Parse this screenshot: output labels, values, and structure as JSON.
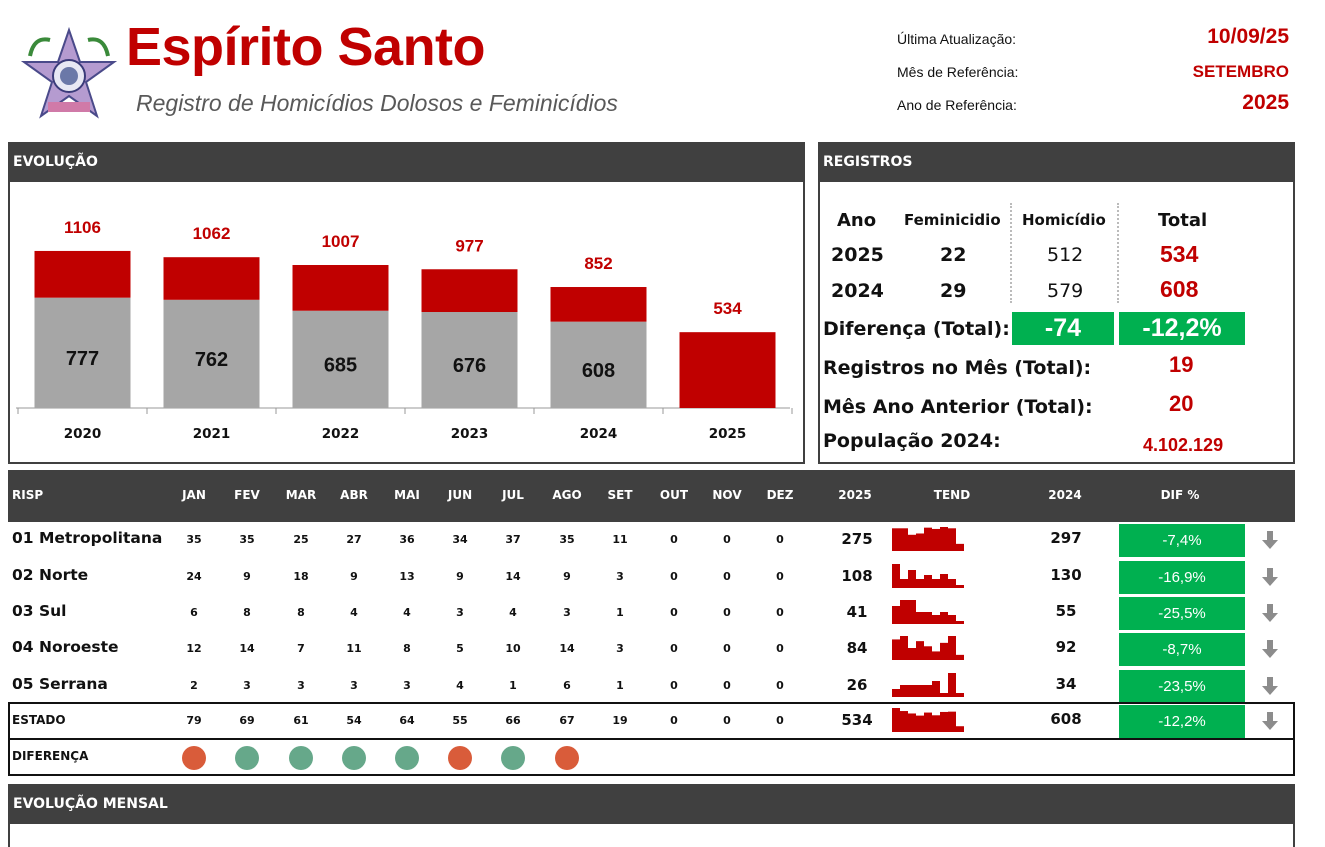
{
  "header": {
    "title": "Espírito Santo",
    "subtitle": "Registro de Homicídios Dolosos e Feminicídios",
    "meta": [
      {
        "label": "Última Atualização:",
        "value": "10/09/25"
      },
      {
        "label": "Mês de Referência:",
        "value": "SETEMBRO"
      },
      {
        "label": "Ano de Referência:",
        "value": "2025"
      }
    ]
  },
  "sections": {
    "evolucao": "EVOLUÇÃO",
    "registros": "REGISTROS",
    "evolucao_mensal": "EVOLUÇÃO MENSAL"
  },
  "chart_data": {
    "type": "bar",
    "stacked": true,
    "categories": [
      "2020",
      "2021",
      "2022",
      "2023",
      "2024",
      "2025"
    ],
    "totals": [
      1106,
      1062,
      1007,
      977,
      852,
      534
    ],
    "series": [
      {
        "name": "",
        "values": [
          777,
          762,
          685,
          676,
          608,
          null
        ],
        "color": "#a6a6a6"
      },
      {
        "name": "",
        "values": [
          329,
          300,
          322,
          301,
          244,
          534
        ],
        "color": "#c00000"
      }
    ],
    "legend": "none",
    "grid": false
  },
  "registros": {
    "headers": {
      "ano": "Ano",
      "fem": "Feminicidio",
      "hom": "Homicídio",
      "total": "Total"
    },
    "rows": [
      {
        "ano": "2025",
        "fem": "22",
        "hom": "512",
        "total": "534"
      },
      {
        "ano": "2024",
        "fem": "29",
        "hom": "579",
        "total": "608"
      }
    ],
    "diferenca_label": "Diferença (Total):",
    "diferenca_abs": "-74",
    "diferenca_pct": "-12,2%",
    "mes_label": "Registros no Mês (Total):",
    "mes_value": "19",
    "mes_anterior_label": "Mês Ano Anterior (Total):",
    "mes_anterior_value": "20",
    "pop_label": "População 2024:",
    "pop_value": "4.102.129"
  },
  "risp": {
    "headers": {
      "risp": "RISP",
      "months": [
        "JAN",
        "FEV",
        "MAR",
        "ABR",
        "MAI",
        "JUN",
        "JUL",
        "AGO",
        "SET",
        "OUT",
        "NOV",
        "DEZ"
      ],
      "y2025": "2025",
      "tend": "TEND",
      "y2024": "2024",
      "dif": "DIF %"
    },
    "rows": [
      {
        "name": "01 Metropolitana",
        "months": [
          "35",
          "35",
          "25",
          "27",
          "36",
          "34",
          "37",
          "35",
          "11",
          "0",
          "0",
          "0"
        ],
        "y2025": "275",
        "y2024": "297",
        "dif": "-7,4%"
      },
      {
        "name": "02 Norte",
        "months": [
          "24",
          "9",
          "18",
          "9",
          "13",
          "9",
          "14",
          "9",
          "3",
          "0",
          "0",
          "0"
        ],
        "y2025": "108",
        "y2024": "130",
        "dif": "-16,9%"
      },
      {
        "name": "03 Sul",
        "months": [
          "6",
          "8",
          "8",
          "4",
          "4",
          "3",
          "4",
          "3",
          "1",
          "0",
          "0",
          "0"
        ],
        "y2025": "41",
        "y2024": "55",
        "dif": "-25,5%"
      },
      {
        "name": "04 Noroeste",
        "months": [
          "12",
          "14",
          "7",
          "11",
          "8",
          "5",
          "10",
          "14",
          "3",
          "0",
          "0",
          "0"
        ],
        "y2025": "84",
        "y2024": "92",
        "dif": "-8,7%"
      },
      {
        "name": "05 Serrana",
        "months": [
          "2",
          "3",
          "3",
          "3",
          "3",
          "4",
          "1",
          "6",
          "1",
          "0",
          "0",
          "0"
        ],
        "y2025": "26",
        "y2024": "34",
        "dif": "-23,5%"
      }
    ],
    "estado": {
      "name": "ESTADO",
      "months": [
        "79",
        "69",
        "61",
        "54",
        "64",
        "55",
        "66",
        "67",
        "19",
        "0",
        "0",
        "0"
      ],
      "y2025": "534",
      "y2024": "608",
      "dif": "-12,2%"
    },
    "diferenca_label": "DIFERENÇA",
    "diferenca_dots": [
      "up",
      "down",
      "down",
      "down",
      "down",
      "up",
      "down",
      "up"
    ],
    "colors": {
      "up": "#d95c3a",
      "down": "#66a88a",
      "dif_bg": "#00b050",
      "red": "#c00000"
    }
  }
}
